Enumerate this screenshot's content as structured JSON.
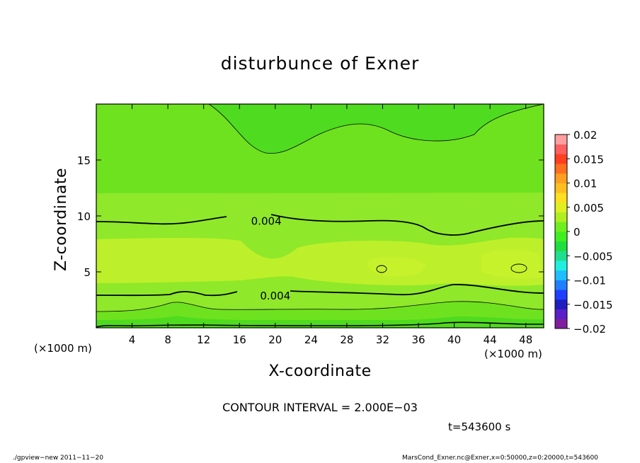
{
  "chart_data": {
    "type": "heatmap",
    "title": "disturbunce of Exner",
    "xlabel": "X-coordinate",
    "ylabel": "Z-coordinate",
    "x_unit_label": "(×1000 m)",
    "y_unit_label": "(×1000 m)",
    "xlim": [
      0,
      50
    ],
    "ylim": [
      0,
      20
    ],
    "x_ticks": [
      4,
      8,
      12,
      16,
      20,
      24,
      28,
      32,
      36,
      40,
      44,
      48
    ],
    "y_ticks": [
      5,
      10,
      15
    ],
    "colorbar": {
      "range": [
        -0.02,
        0.02
      ],
      "labels": [
        "0.02",
        "0.015",
        "0.01",
        "0.005",
        "0",
        "−0.005",
        "−0.01",
        "−0.015",
        "−0.02"
      ],
      "label_values": [
        0.02,
        0.015,
        0.01,
        0.005,
        0,
        -0.005,
        -0.01,
        -0.015,
        -0.02
      ],
      "colors": [
        "#7f1f9f",
        "#5a1fc8",
        "#1f1fbf",
        "#1f3fff",
        "#1f7fff",
        "#1fbfff",
        "#1fefdf",
        "#1fdf8f",
        "#1fdf3f",
        "#3fef1f",
        "#6fef1f",
        "#afef1f",
        "#dfef1f",
        "#ffdf1f",
        "#ffbf1f",
        "#ff9f1f",
        "#ff6f1f",
        "#ff3f1f",
        "#ff5f5f",
        "#ff9f9f"
      ]
    },
    "contour_interval": 0.002,
    "contour_labels": [
      {
        "text": "0.004",
        "x": 19.0,
        "z": 9.6
      },
      {
        "text": "0.004",
        "x": 20.0,
        "z": 2.9
      }
    ],
    "time_label": "t=543600 s"
  },
  "annotation": {
    "interval_text": "CONTOUR INTERVAL = 2.000E−03"
  },
  "footer": {
    "left": "./gpview−new   2011−11−20",
    "right": "MarsCond_Exner.nc@Exner,x=0:50000,z=0:20000,t=543600"
  }
}
